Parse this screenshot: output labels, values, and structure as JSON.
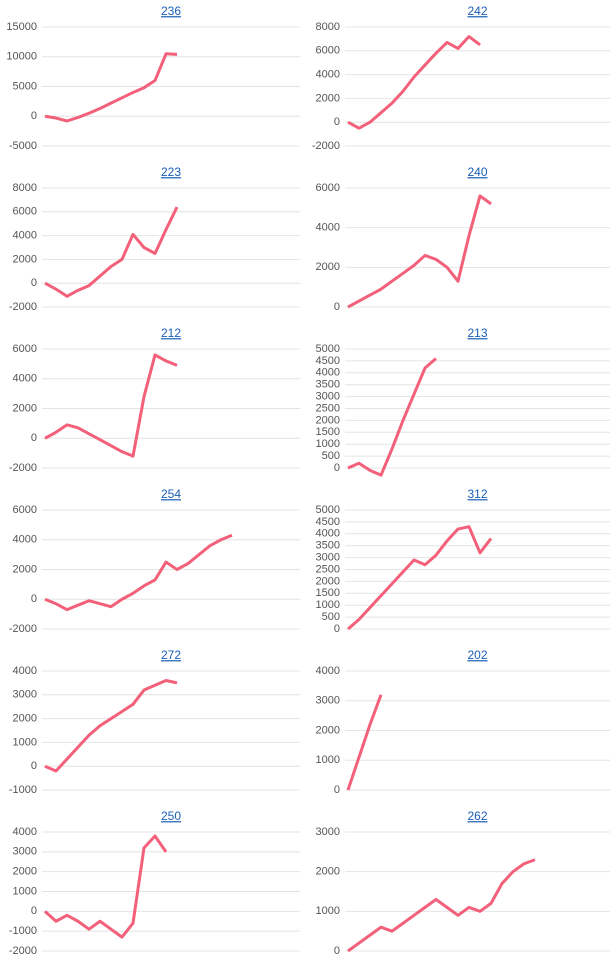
{
  "chart_data": [
    {
      "type": "line",
      "title": "236",
      "color": "#f2607a",
      "grid": true,
      "ylim": [
        -5000,
        15000
      ],
      "yticks": [
        -5000,
        0,
        5000,
        10000,
        15000
      ],
      "values": [
        0,
        -300,
        -800,
        -200,
        500,
        1300,
        2200,
        3100,
        4000,
        4800,
        6000,
        10500,
        10400
      ]
    },
    {
      "type": "line",
      "title": "242",
      "color": "#f2607a",
      "grid": true,
      "ylim": [
        -2000,
        8000
      ],
      "yticks": [
        -2000,
        0,
        2000,
        4000,
        6000,
        8000
      ],
      "values": [
        0,
        -500,
        0,
        800,
        1600,
        2600,
        3800,
        4800,
        5800,
        6700,
        6200,
        7200,
        6500
      ]
    },
    {
      "type": "line",
      "title": "223",
      "color": "#f2607a",
      "grid": true,
      "ylim": [
        -2000,
        8000
      ],
      "yticks": [
        -2000,
        0,
        2000,
        4000,
        6000,
        8000
      ],
      "values": [
        0,
        -500,
        -1100,
        -600,
        -200,
        600,
        1400,
        2000,
        4100,
        3000,
        2500,
        4500,
        6400
      ]
    },
    {
      "type": "line",
      "title": "240",
      "color": "#f2607a",
      "grid": true,
      "ylim": [
        0,
        6000
      ],
      "yticks": [
        0,
        2000,
        4000,
        6000
      ],
      "values": [
        0,
        300,
        600,
        900,
        1300,
        1700,
        2100,
        2600,
        2400,
        2000,
        1300,
        3600,
        5600,
        5200
      ]
    },
    {
      "type": "line",
      "title": "212",
      "color": "#f2607a",
      "grid": true,
      "ylim": [
        -2000,
        6000
      ],
      "yticks": [
        -2000,
        0,
        2000,
        4000,
        6000
      ],
      "values": [
        0,
        400,
        900,
        700,
        300,
        -100,
        -500,
        -900,
        -1200,
        2800,
        5600,
        5200,
        4900
      ]
    },
    {
      "type": "line",
      "title": "213",
      "color": "#f2607a",
      "grid": true,
      "ylim": [
        0,
        5000
      ],
      "yticks": [
        0,
        500,
        1000,
        1500,
        2000,
        2500,
        3000,
        3500,
        4000,
        4500,
        5000
      ],
      "values": [
        0,
        200,
        -100,
        -300,
        800,
        2000,
        3100,
        4200,
        4600
      ]
    },
    {
      "type": "line",
      "title": "254",
      "color": "#f2607a",
      "grid": true,
      "ylim": [
        -2000,
        6000
      ],
      "yticks": [
        -2000,
        0,
        2000,
        4000,
        6000
      ],
      "values": [
        0,
        -300,
        -700,
        -400,
        -100,
        -300,
        -500,
        0,
        400,
        900,
        1300,
        2500,
        2000,
        2400,
        3000,
        3600,
        4000,
        4300
      ]
    },
    {
      "type": "line",
      "title": "312",
      "color": "#f2607a",
      "grid": true,
      "ylim": [
        0,
        5000
      ],
      "yticks": [
        0,
        500,
        1000,
        1500,
        2000,
        2500,
        3000,
        3500,
        4000,
        4500,
        5000
      ],
      "values": [
        0,
        400,
        900,
        1400,
        1900,
        2400,
        2900,
        2700,
        3100,
        3700,
        4200,
        4300,
        3200,
        3800
      ]
    },
    {
      "type": "line",
      "title": "272",
      "color": "#f2607a",
      "grid": true,
      "ylim": [
        -1000,
        4000
      ],
      "yticks": [
        -1000,
        0,
        1000,
        2000,
        3000,
        4000
      ],
      "values": [
        0,
        -200,
        300,
        800,
        1300,
        1700,
        2000,
        2300,
        2600,
        3200,
        3400,
        3600,
        3500
      ]
    },
    {
      "type": "line",
      "title": "202",
      "color": "#f2607a",
      "grid": true,
      "ylim": [
        0,
        4000
      ],
      "yticks": [
        0,
        1000,
        2000,
        3000,
        4000
      ],
      "values": [
        0,
        1100,
        2200,
        3200
      ]
    },
    {
      "type": "line",
      "title": "250",
      "color": "#f2607a",
      "grid": true,
      "ylim": [
        -2000,
        4000
      ],
      "yticks": [
        -2000,
        -1000,
        0,
        1000,
        2000,
        3000,
        4000
      ],
      "values": [
        0,
        -500,
        -200,
        -500,
        -900,
        -500,
        -900,
        -1300,
        -600,
        3200,
        3800,
        3000
      ]
    },
    {
      "type": "line",
      "title": "262",
      "color": "#f2607a",
      "grid": true,
      "ylim": [
        0,
        3000
      ],
      "yticks": [
        0,
        1000,
        2000,
        3000
      ],
      "values": [
        0,
        200,
        400,
        600,
        500,
        700,
        900,
        1100,
        1300,
        1100,
        900,
        1100,
        1000,
        1200,
        1700,
        2000,
        2200,
        2300
      ]
    }
  ]
}
